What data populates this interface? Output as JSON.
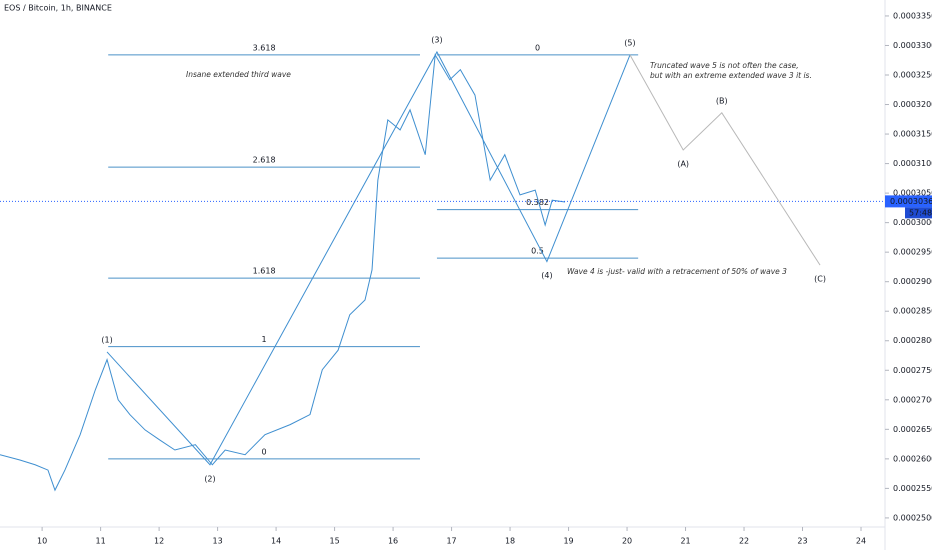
{
  "chart_data": {
    "type": "line",
    "title": "EOS / Bitcoin, 1h, BINANCE",
    "x": [
      9.28,
      9.62,
      9.88,
      10.1,
      10.22,
      10.39,
      10.65,
      10.91,
      11.11,
      11.3,
      11.5,
      11.76,
      12.01,
      12.27,
      12.62,
      12.91,
      13.13,
      13.47,
      13.81,
      14.24,
      14.58,
      14.79,
      15.06,
      15.26,
      15.52,
      15.64,
      15.74,
      15.91,
      16.12,
      16.29,
      16.55,
      16.72,
      16.97,
      17.15,
      17.4,
      17.66,
      17.91,
      18.17,
      18.43,
      18.6,
      18.72,
      18.94
    ],
    "series": [
      {
        "color": "#3f8fd0",
        "values": [
          0.0002607,
          0.0002598,
          0.000259,
          0.0002581,
          0.0002547,
          0.0002581,
          0.0002641,
          0.0002717,
          0.0002768,
          0.00027,
          0.0002675,
          0.0002649,
          0.0002632,
          0.0002615,
          0.0002624,
          0.000259,
          0.0002615,
          0.0002607,
          0.0002641,
          0.0002658,
          0.0002675,
          0.0002751,
          0.0002784,
          0.0002844,
          0.0002869,
          0.000292,
          0.0003072,
          0.0003174,
          0.0003157,
          0.0003191,
          0.0003115,
          0.0003284,
          0.0003242,
          0.0003259,
          0.0003216,
          0.0003072,
          0.0003115,
          0.0003047,
          0.0003055,
          0.0002996,
          0.0003038,
          0.0003035
        ]
      }
    ],
    "xlim": [
      9.28,
      24.41
    ],
    "xticks": [
      10,
      11,
      12,
      13,
      14,
      15,
      16,
      17,
      18,
      19,
      20,
      21,
      22,
      23,
      24
    ],
    "ylim": [
      0.0002488,
      0.0003377
    ],
    "yticks": [
      {
        "value": 0.00025,
        "label": "0.0002500"
      },
      {
        "value": 0.000255,
        "label": "0.0002550"
      },
      {
        "value": 0.00026,
        "label": "0.0002600"
      },
      {
        "value": 0.000265,
        "label": "0.0002650"
      },
      {
        "value": 0.00027,
        "label": "0.0002700"
      },
      {
        "value": 0.000275,
        "label": "0.0002750"
      },
      {
        "value": 0.00028,
        "label": "0.0002800"
      },
      {
        "value": 0.000285,
        "label": "0.0002850"
      },
      {
        "value": 0.00029,
        "label": "0.0002900"
      },
      {
        "value": 0.000295,
        "label": "0.0002950"
      },
      {
        "value": 0.0003,
        "label": "0.0003000"
      },
      {
        "value": 0.000305,
        "label": "0.0003050"
      },
      {
        "value": 0.00031,
        "label": "0.0003100"
      },
      {
        "value": 0.000315,
        "label": "0.0003150"
      },
      {
        "value": 0.00032,
        "label": "0.0003200"
      },
      {
        "value": 0.000325,
        "label": "0.0003250"
      },
      {
        "value": 0.00033,
        "label": "0.0003300"
      },
      {
        "value": 0.000335,
        "label": "0.0003350"
      }
    ],
    "last_price": {
      "value": 0.0003036,
      "label": "0.0003036"
    },
    "countdown": "57:48",
    "impulse": {
      "color": "#3f8fd0",
      "labels": [
        "(1)",
        "(2)",
        "(3)",
        "(4)",
        "(5)"
      ],
      "x": [
        11.11,
        12.87,
        16.75,
        18.63,
        20.05
      ],
      "values": [
        0.0002781,
        0.000259,
        0.0003289,
        0.0002934,
        0.0003284
      ]
    },
    "correction": {
      "color": "#b8b8b8",
      "labels": [
        "(A)",
        "(B)",
        "(C)"
      ],
      "x": [
        20.96,
        21.62,
        23.3
      ],
      "values": [
        0.0003123,
        0.0003186,
        0.0002928
      ]
    },
    "fib_color": "#4a90c8",
    "fib_levels": [
      {
        "label": "3.618",
        "value": 0.0003284,
        "x": [
          11.13,
          16.46
        ]
      },
      {
        "label": "2.618",
        "value": 0.0003094,
        "x": [
          11.13,
          16.46
        ]
      },
      {
        "label": "1.618",
        "value": 0.0002906,
        "x": [
          11.13,
          16.46
        ]
      },
      {
        "label": "1",
        "value": 0.000279,
        "x": [
          11.13,
          16.46
        ]
      },
      {
        "label": "0",
        "value": 0.00026,
        "x": [
          11.13,
          16.46
        ]
      },
      {
        "label": "0",
        "value": 0.0003284,
        "x": [
          16.75,
          20.19
        ]
      },
      {
        "label": "0.382",
        "value": 0.0003022,
        "x": [
          16.75,
          20.19
        ]
      },
      {
        "label": "0.5",
        "value": 0.000294,
        "x": [
          16.75,
          20.19
        ]
      }
    ],
    "annotations": [
      "Insane extended third wave",
      "Truncated wave 5 is not often the case,",
      "but with an extreme extended wave 3 it is.",
      "Wave 4 is -just- valid with a retracement of 50% of wave 3"
    ]
  }
}
